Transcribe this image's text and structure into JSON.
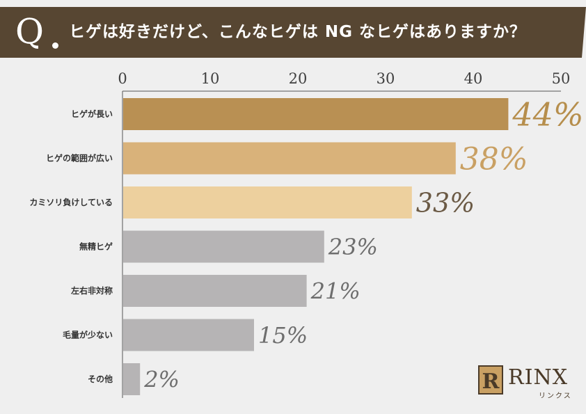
{
  "title": {
    "q_letter": "Q",
    "question": "ヒゲは好きだけど、こんなヒゲは NG なヒゲはありますか？"
  },
  "chart_data": {
    "type": "bar",
    "orientation": "horizontal",
    "xlim": [
      0,
      50
    ],
    "ticks": [
      0,
      10,
      20,
      30,
      40,
      50
    ],
    "grid": false,
    "categories": [
      "ヒゲが長い",
      "ヒゲの範囲が広い",
      "カミソリ負けしている",
      "無精ヒゲ",
      "左右非対称",
      "毛量が少ない",
      "その他"
    ],
    "values": [
      44,
      38,
      33,
      23,
      21,
      15,
      2
    ],
    "value_labels": [
      "44%",
      "38%",
      "33%",
      "23%",
      "21%",
      "15%",
      "2%"
    ],
    "bar_colors": [
      "#b99053",
      "#d9b27a",
      "#edd09e",
      "#b6b4b5",
      "#b6b4b5",
      "#b6b4b5",
      "#b6b4b5"
    ],
    "label_colors": [
      "#b68e4c",
      "#c9a063",
      "#6b5a45",
      "#6d6d6d",
      "#6d6d6d",
      "#6d6d6d",
      "#6d6d6d"
    ]
  },
  "logo": {
    "name": "RINX",
    "kana": "リンクス",
    "mark": "R"
  }
}
